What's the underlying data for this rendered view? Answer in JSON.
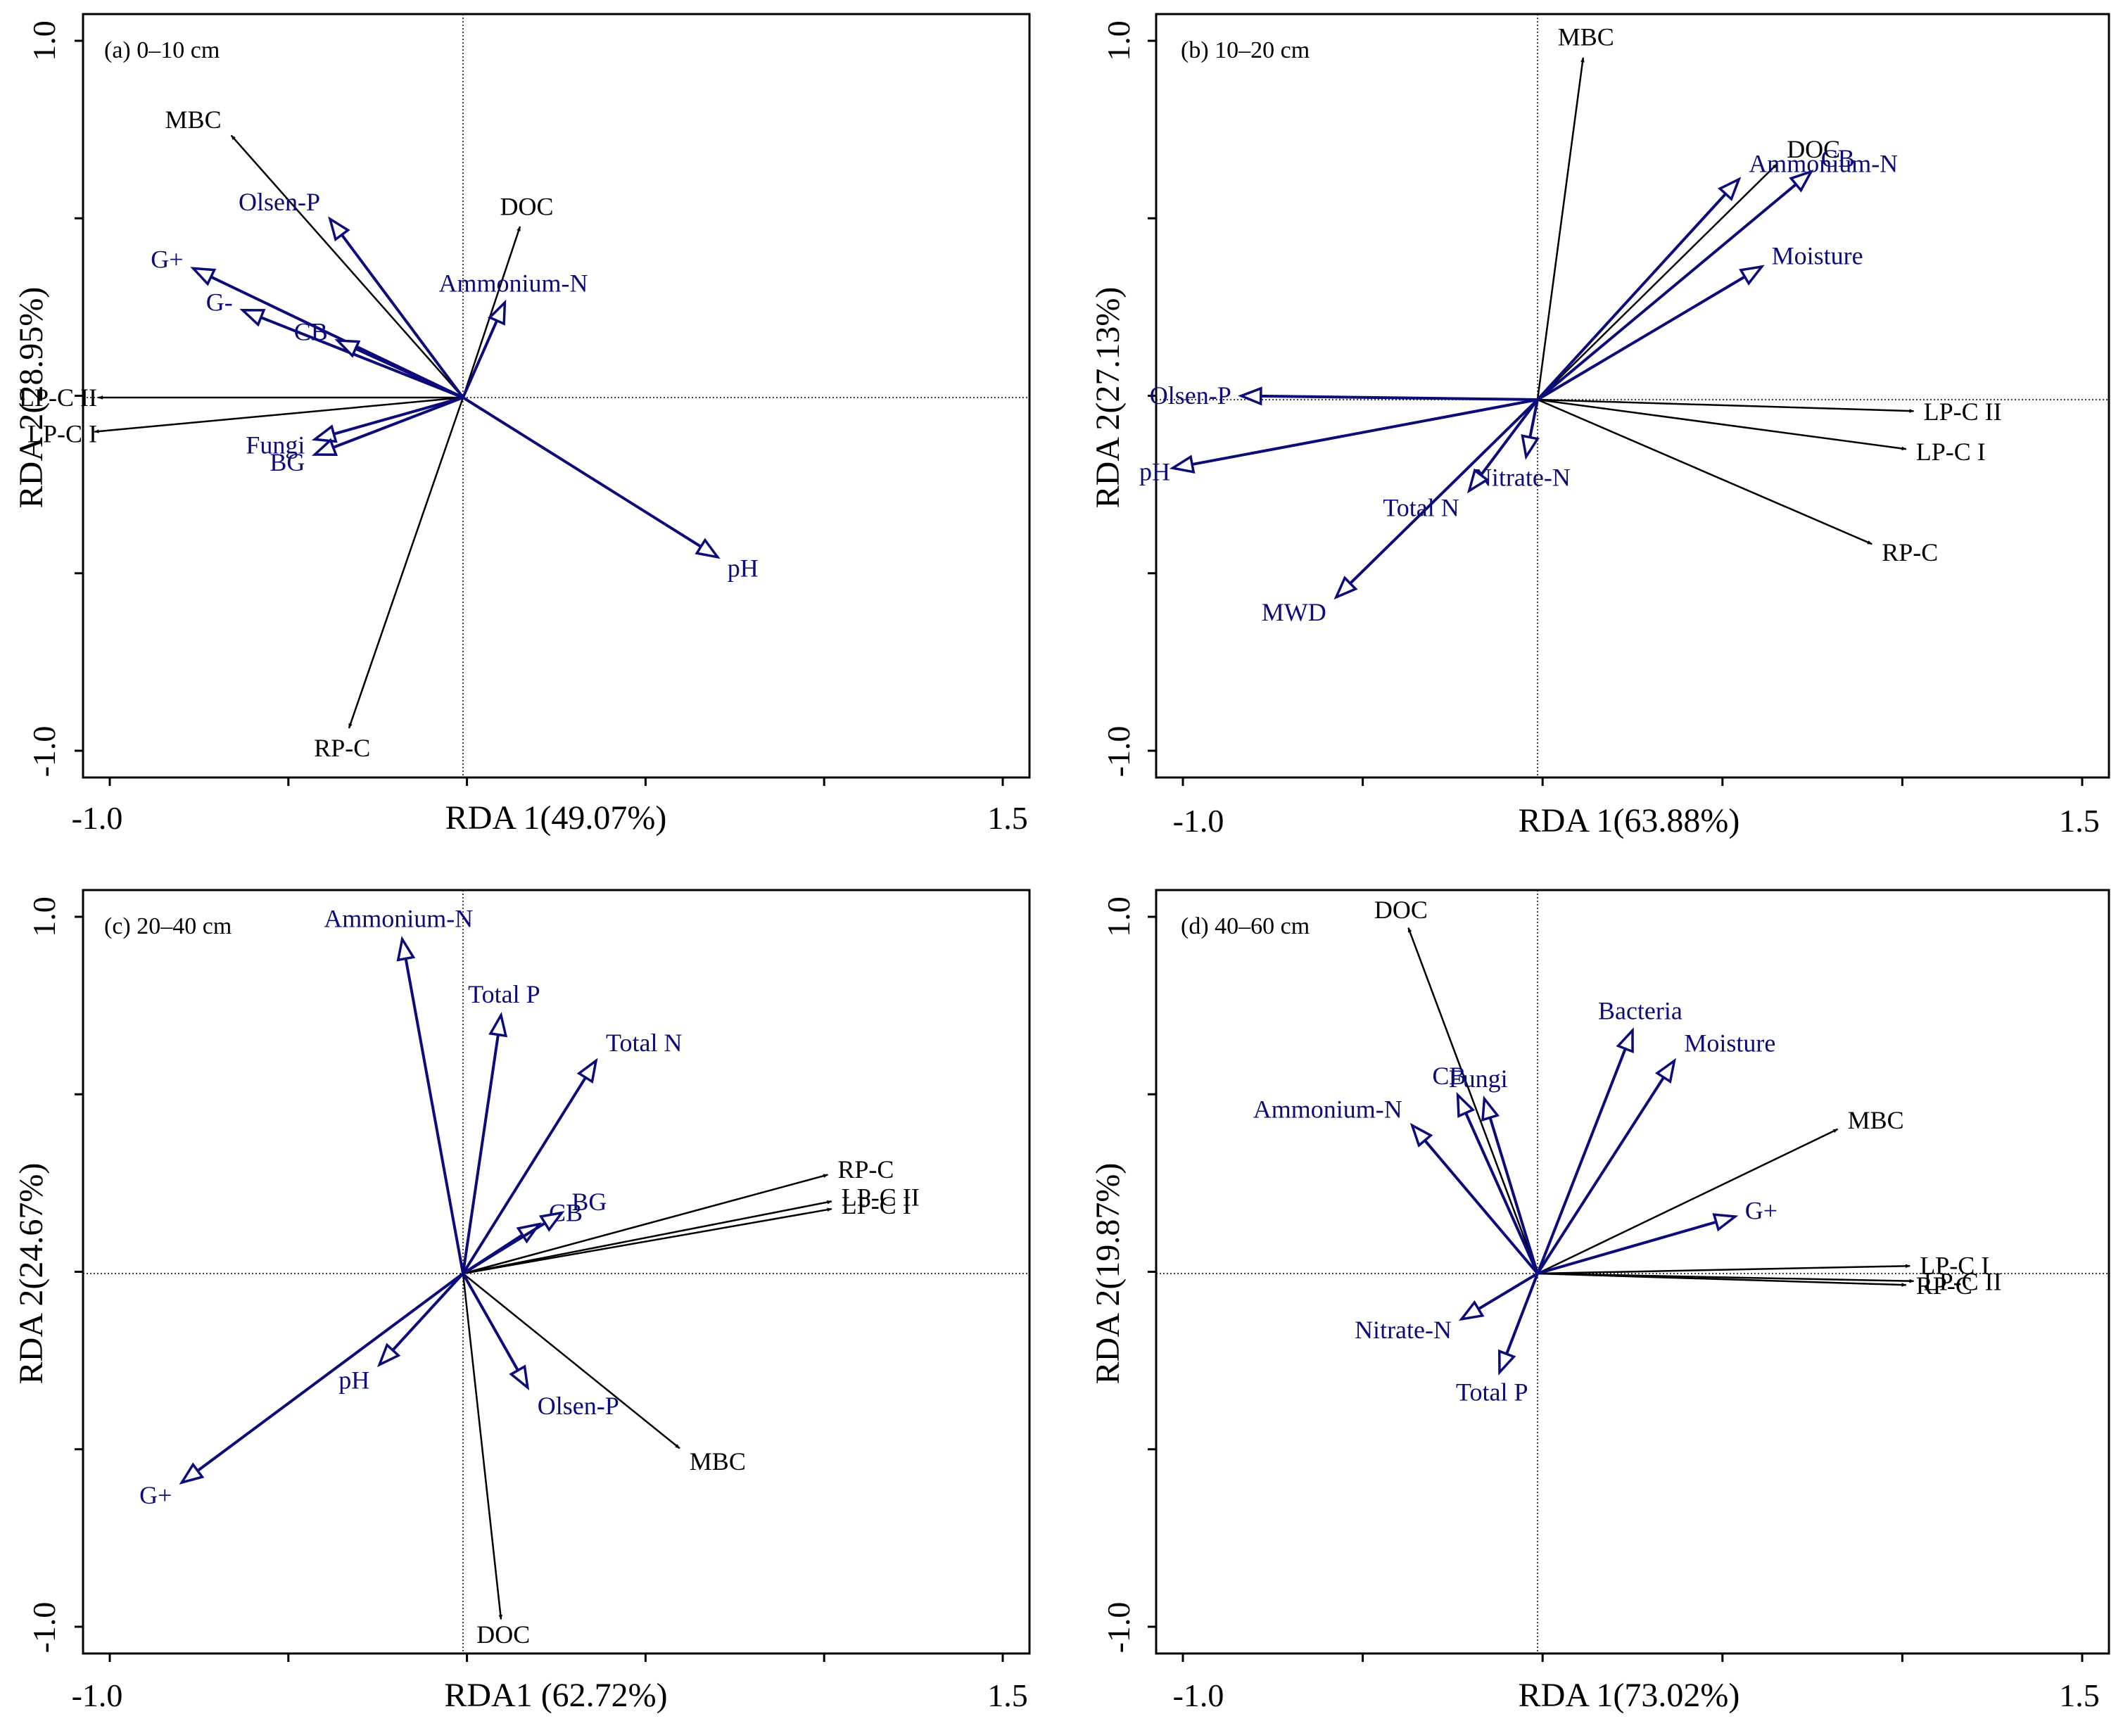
{
  "colors": {
    "env": "#0b0b7a",
    "resp": "#000000",
    "frame": "#000000"
  },
  "chart_data": [
    {
      "type": "biplot",
      "panel": "a",
      "title": "(a) 0–10 cm",
      "xlabel": "RDA 1(49.07%)",
      "ylabel": "RDA 2(28.95%)",
      "xlim": [
        -1.0,
        1.5
      ],
      "ylim": [
        -1.0,
        1.0
      ],
      "x_tick_labels": [
        "-1.0",
        "1.5"
      ],
      "y_tick_labels": [
        "-1.0",
        "1.0"
      ],
      "arrows": [
        {
          "label": "MBC",
          "x": -0.61,
          "y": 0.69,
          "kind": "response"
        },
        {
          "label": "DOC",
          "x": 0.15,
          "y": 0.45,
          "kind": "response"
        },
        {
          "label": "LP-C II",
          "x": -0.96,
          "y": 0.0,
          "kind": "response"
        },
        {
          "label": "LP-C I",
          "x": -0.97,
          "y": -0.09,
          "kind": "response"
        },
        {
          "label": "RP-C",
          "x": -0.3,
          "y": -0.87,
          "kind": "response"
        },
        {
          "label": "Olsen-P",
          "x": -0.35,
          "y": 0.47,
          "kind": "environment"
        },
        {
          "label": "G+",
          "x": -0.71,
          "y": 0.34,
          "kind": "environment"
        },
        {
          "label": "G-",
          "x": -0.58,
          "y": 0.23,
          "kind": "environment"
        },
        {
          "label": "CB",
          "x": -0.33,
          "y": 0.15,
          "kind": "environment"
        },
        {
          "label": "Ammonium-N",
          "x": 0.11,
          "y": 0.25,
          "kind": "environment"
        },
        {
          "label": "Fungi",
          "x": -0.39,
          "y": -0.11,
          "kind": "environment"
        },
        {
          "label": "BG",
          "x": -0.39,
          "y": -0.15,
          "kind": "environment"
        },
        {
          "label": "pH",
          "x": 0.67,
          "y": -0.42,
          "kind": "environment"
        }
      ]
    },
    {
      "type": "biplot",
      "panel": "b",
      "title": "(b) 10–20 cm",
      "xlabel": "RDA 1(63.88%)",
      "ylabel": "RDA 2(27.13%)",
      "xlim": [
        -1.0,
        1.5
      ],
      "ylim": [
        -1.0,
        1.0
      ],
      "x_tick_labels": [
        "-1.0",
        "1.5"
      ],
      "y_tick_labels": [
        "-1.0",
        "1.0"
      ],
      "arrows": [
        {
          "label": "MBC",
          "x": 0.12,
          "y": 0.9,
          "kind": "response"
        },
        {
          "label": "DOC",
          "x": 0.63,
          "y": 0.62,
          "kind": "response"
        },
        {
          "label": "LP-C II",
          "x": 0.99,
          "y": -0.03,
          "kind": "response"
        },
        {
          "label": "LP-C I",
          "x": 0.97,
          "y": -0.13,
          "kind": "response"
        },
        {
          "label": "RP-C",
          "x": 0.88,
          "y": -0.38,
          "kind": "response"
        },
        {
          "label": "Ammonium-N",
          "x": 0.53,
          "y": 0.58,
          "kind": "environment"
        },
        {
          "label": "CB",
          "x": 0.72,
          "y": 0.6,
          "kind": "environment"
        },
        {
          "label": "Moisture",
          "x": 0.59,
          "y": 0.35,
          "kind": "environment"
        },
        {
          "label": "Olsen-P",
          "x": -0.78,
          "y": 0.01,
          "kind": "environment"
        },
        {
          "label": "pH",
          "x": -0.96,
          "y": -0.18,
          "kind": "environment"
        },
        {
          "label": "Nitrate-N",
          "x": -0.03,
          "y": -0.15,
          "kind": "environment"
        },
        {
          "label": "Total N",
          "x": -0.18,
          "y": -0.24,
          "kind": "environment"
        },
        {
          "label": "MWD",
          "x": -0.53,
          "y": -0.52,
          "kind": "environment"
        }
      ]
    },
    {
      "type": "biplot",
      "panel": "c",
      "title": "(c) 20–40 cm",
      "xlabel": "RDA1 (62.72%)",
      "ylabel": "RDA 2(24.67%)",
      "xlim": [
        -1.0,
        1.5
      ],
      "ylim": [
        -1.0,
        1.0
      ],
      "x_tick_labels": [
        "-1.0",
        "1.5"
      ],
      "y_tick_labels": [
        "-1.0",
        "1.0"
      ],
      "arrows": [
        {
          "label": "RP-C",
          "x": 0.96,
          "y": 0.26,
          "kind": "response"
        },
        {
          "label": "LP-C II",
          "x": 0.97,
          "y": 0.19,
          "kind": "response"
        },
        {
          "label": "LP-C I",
          "x": 0.97,
          "y": 0.17,
          "kind": "response"
        },
        {
          "label": "MBC",
          "x": 0.57,
          "y": -0.46,
          "kind": "response"
        },
        {
          "label": "DOC",
          "x": 0.1,
          "y": -0.91,
          "kind": "response"
        },
        {
          "label": "Ammonium-N",
          "x": -0.16,
          "y": 0.88,
          "kind": "environment"
        },
        {
          "label": "Total P",
          "x": 0.1,
          "y": 0.68,
          "kind": "environment"
        },
        {
          "label": "Total N",
          "x": 0.35,
          "y": 0.56,
          "kind": "environment"
        },
        {
          "label": "CB",
          "x": 0.2,
          "y": 0.13,
          "kind": "environment"
        },
        {
          "label": "BG",
          "x": 0.26,
          "y": 0.16,
          "kind": "environment"
        },
        {
          "label": "pH",
          "x": -0.22,
          "y": -0.24,
          "kind": "environment"
        },
        {
          "label": "Olsen-P",
          "x": 0.17,
          "y": -0.3,
          "kind": "environment"
        },
        {
          "label": "G+",
          "x": -0.74,
          "y": -0.55,
          "kind": "environment"
        }
      ]
    },
    {
      "type": "biplot",
      "panel": "d",
      "title": "(d) 40–60 cm",
      "xlabel": "RDA 1(73.02%)",
      "ylabel": "RDA 2(19.87%)",
      "xlim": [
        -1.0,
        1.5
      ],
      "ylim": [
        -1.0,
        1.0
      ],
      "x_tick_labels": [
        "-1.0",
        "1.5"
      ],
      "y_tick_labels": [
        "-1.0",
        "1.0"
      ],
      "arrows": [
        {
          "label": "DOC",
          "x": -0.34,
          "y": 0.91,
          "kind": "response"
        },
        {
          "label": "MBC",
          "x": 0.79,
          "y": 0.38,
          "kind": "response"
        },
        {
          "label": "LP-C I",
          "x": 0.98,
          "y": 0.02,
          "kind": "response"
        },
        {
          "label": "LP-C II",
          "x": 0.99,
          "y": -0.02,
          "kind": "response"
        },
        {
          "label": "RP-C",
          "x": 0.97,
          "y": -0.03,
          "kind": "response"
        },
        {
          "label": "Bacteria",
          "x": 0.25,
          "y": 0.64,
          "kind": "environment"
        },
        {
          "label": "Moisture",
          "x": 0.36,
          "y": 0.56,
          "kind": "environment"
        },
        {
          "label": "CB",
          "x": -0.21,
          "y": 0.47,
          "kind": "environment"
        },
        {
          "label": "Fungi",
          "x": -0.14,
          "y": 0.46,
          "kind": "environment"
        },
        {
          "label": "Ammonium-N",
          "x": -0.33,
          "y": 0.39,
          "kind": "environment"
        },
        {
          "label": "G+",
          "x": 0.52,
          "y": 0.15,
          "kind": "environment"
        },
        {
          "label": "Nitrate-N",
          "x": -0.2,
          "y": -0.12,
          "kind": "environment"
        },
        {
          "label": "Total P",
          "x": -0.1,
          "y": -0.26,
          "kind": "environment"
        }
      ]
    }
  ]
}
